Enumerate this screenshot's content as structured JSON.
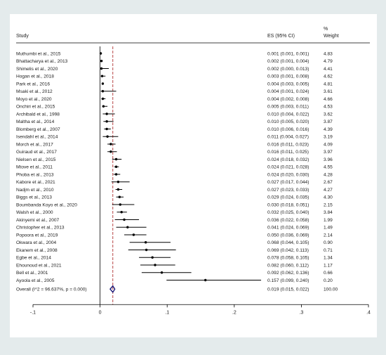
{
  "header": {
    "study": "Study",
    "es": "ES (95% CI)",
    "weight_pct": "%",
    "weight": "Weight"
  },
  "chart_data": {
    "type": "forest",
    "x_ticks": [
      {
        "value": -0.1,
        "label": "-.1"
      },
      {
        "value": 0,
        "label": "0"
      },
      {
        "value": 0.1,
        "label": ".1"
      },
      {
        "value": 0.2,
        "label": ".2"
      },
      {
        "value": 0.3,
        "label": ".3"
      },
      {
        "value": 0.4,
        "label": ".4"
      }
    ],
    "xlim": [
      -0.1,
      0.4
    ],
    "reference_line": 0,
    "pooled_line": 0.019,
    "studies": [
      {
        "study": "Muthumbi et al., 2015",
        "es": 0.001,
        "lo": 0.001,
        "hi": 0.001,
        "es_text": "0.001 (0.001, 0.001)",
        "weight": "4.83"
      },
      {
        "study": "Bhattacharya et al., 2013",
        "es": 0.002,
        "lo": 0.001,
        "hi": 0.004,
        "es_text": "0.002 (0.001, 0.004)",
        "weight": "4.79"
      },
      {
        "study": "Shimelis et al., 2020",
        "es": 0.002,
        "lo": 0.0,
        "hi": 0.013,
        "es_text": "0.002 (0.000, 0.013)",
        "weight": "4.41"
      },
      {
        "study": "Hogan et al., 2018",
        "es": 0.003,
        "lo": 0.001,
        "hi": 0.008,
        "es_text": "0.003 (0.001, 0.008)",
        "weight": "4.62"
      },
      {
        "study": "Park et al., 2016",
        "es": 0.004,
        "lo": 0.003,
        "hi": 0.005,
        "es_text": "0.004 (0.003, 0.005)",
        "weight": "4.81"
      },
      {
        "study": "Msaki et al., 2012",
        "es": 0.004,
        "lo": 0.001,
        "hi": 0.024,
        "es_text": "0.004 (0.001, 0.024)",
        "weight": "3.61"
      },
      {
        "study": "Moyo et al., 2020",
        "es": 0.004,
        "lo": 0.002,
        "hi": 0.008,
        "es_text": "0.004 (0.002, 0.008)",
        "weight": "4.66"
      },
      {
        "study": "Onchiri et al., 2015",
        "es": 0.005,
        "lo": 0.003,
        "hi": 0.011,
        "es_text": "0.005 (0.003, 0.011)",
        "weight": "4.53"
      },
      {
        "study": "Archibald et al., 1998",
        "es": 0.01,
        "lo": 0.004,
        "hi": 0.022,
        "es_text": "0.010 (0.004, 0.022)",
        "weight": "3.62"
      },
      {
        "study": "Maltha et al., 2014",
        "es": 0.01,
        "lo": 0.005,
        "hi": 0.02,
        "es_text": "0.010 (0.005, 0.020)",
        "weight": "3.87"
      },
      {
        "study": "Blomberg et al., 2007",
        "es": 0.01,
        "lo": 0.006,
        "hi": 0.016,
        "es_text": "0.010 (0.006, 0.016)",
        "weight": "4.39"
      },
      {
        "study": "Isendahl et al., 2014",
        "es": 0.011,
        "lo": 0.004,
        "hi": 0.027,
        "es_text": "0.011 (0.004, 0.027)",
        "weight": "3.19"
      },
      {
        "study": "Morch et al., 2017",
        "es": 0.016,
        "lo": 0.011,
        "hi": 0.023,
        "es_text": "0.016 (0.011, 0.023)",
        "weight": "4.09"
      },
      {
        "study": "Guiraud et al., 2017",
        "es": 0.016,
        "lo": 0.011,
        "hi": 0.025,
        "es_text": "0.016 (0.011, 0.025)",
        "weight": "3.97"
      },
      {
        "study": "Nielsen et al., 2015",
        "es": 0.024,
        "lo": 0.018,
        "hi": 0.032,
        "es_text": "0.024 (0.018, 0.032)",
        "weight": "3.96"
      },
      {
        "study": "Mtove et al., 2011",
        "es": 0.024,
        "lo": 0.021,
        "hi": 0.028,
        "es_text": "0.024 (0.021, 0.028)",
        "weight": "4.55"
      },
      {
        "study": "Phoba et al., 2013",
        "es": 0.024,
        "lo": 0.02,
        "hi": 0.03,
        "es_text": "0.024 (0.020, 0.030)",
        "weight": "4.28"
      },
      {
        "study": "Kabore et al., 2021",
        "es": 0.027,
        "lo": 0.017,
        "hi": 0.044,
        "es_text": "0.027 (0.017, 0.044)",
        "weight": "2.67"
      },
      {
        "study": "Nadjm et al., 2010",
        "es": 0.027,
        "lo": 0.023,
        "hi": 0.033,
        "es_text": "0.027 (0.023, 0.033)",
        "weight": "4.27"
      },
      {
        "study": "Biggs et al., 2013",
        "es": 0.029,
        "lo": 0.024,
        "hi": 0.035,
        "es_text": "0.029 (0.024, 0.035)",
        "weight": "4.30"
      },
      {
        "study": "Boumbanda Koyo et al., 2020",
        "es": 0.03,
        "lo": 0.018,
        "hi": 0.051,
        "es_text": "0.030 (0.018, 0.051)",
        "weight": "2.15"
      },
      {
        "study": "Walsh et al., 2000",
        "es": 0.032,
        "lo": 0.025,
        "hi": 0.04,
        "es_text": "0.032 (0.025, 0.040)",
        "weight": "3.84"
      },
      {
        "study": "Akinyemi et al., 2007",
        "es": 0.036,
        "lo": 0.022,
        "hi": 0.058,
        "es_text": "0.036 (0.022, 0.058)",
        "weight": "1.99"
      },
      {
        "study": "Christopher et al., 2013",
        "es": 0.041,
        "lo": 0.024,
        "hi": 0.069,
        "es_text": "0.041 (0.024, 0.069)",
        "weight": "1.49"
      },
      {
        "study": "Popoora et al., 2019",
        "es": 0.05,
        "lo": 0.036,
        "hi": 0.069,
        "es_text": "0.050 (0.036, 0.069)",
        "weight": "2.14"
      },
      {
        "study": "Okwara et al., 2004",
        "es": 0.068,
        "lo": 0.044,
        "hi": 0.105,
        "es_text": "0.068 (0.044, 0.105)",
        "weight": "0.90"
      },
      {
        "study": "Ekanem et al., 2008",
        "es": 0.069,
        "lo": 0.042,
        "hi": 0.113,
        "es_text": "0.069 (0.042, 0.113)",
        "weight": "0.71"
      },
      {
        "study": "Egbe et al., 2014",
        "es": 0.078,
        "lo": 0.058,
        "hi": 0.105,
        "es_text": "0.078 (0.058, 0.105)",
        "weight": "1.34"
      },
      {
        "study": "Ehounoud et al., 2021",
        "es": 0.082,
        "lo": 0.06,
        "hi": 0.112,
        "es_text": "0.082 (0.060, 0.112)",
        "weight": "1.17"
      },
      {
        "study": "Bell et al., 2001",
        "es": 0.092,
        "lo": 0.062,
        "hi": 0.136,
        "es_text": "0.092 (0.062, 0.136)",
        "weight": "0.66"
      },
      {
        "study": "Ayoola et al., 2005",
        "es": 0.157,
        "lo": 0.099,
        "hi": 0.24,
        "es_text": "0.157 (0.099, 0.240)",
        "weight": "0.20"
      }
    ],
    "overall": {
      "study": "Overall  (I^2 = 96.637%, p = 0.000)",
      "es": 0.019,
      "lo": 0.015,
      "hi": 0.022,
      "es_text": "0.019 (0.015, 0.022)",
      "weight": "100.00"
    },
    "colors": {
      "diamond": "#1b1b7a",
      "pooled_line": "#b03030",
      "markers": "#000000"
    }
  }
}
